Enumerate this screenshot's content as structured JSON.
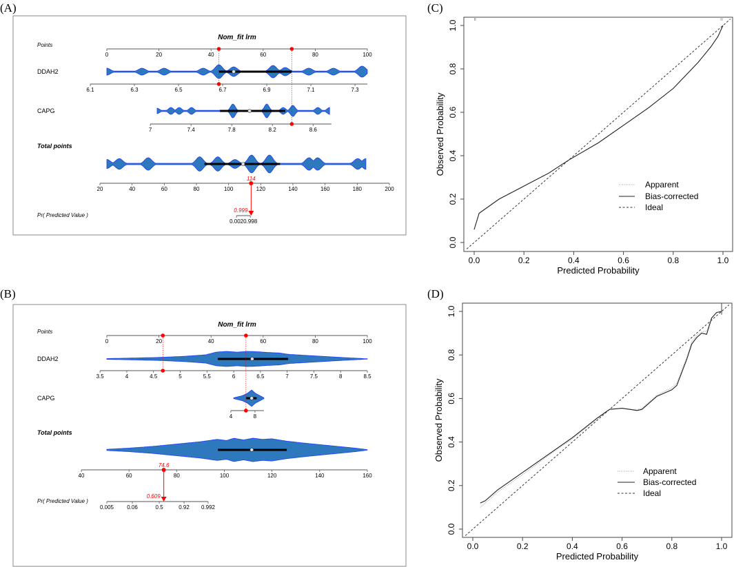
{
  "chart_data": [
    {
      "type": "nomogram",
      "panel_label": "(A)",
      "title": "Nom_fit lrm",
      "points_axis": {
        "label": "Points",
        "min": 0,
        "max": 100,
        "ticks": [
          "0",
          "20",
          "40",
          "60",
          "80",
          "100"
        ]
      },
      "variables": [
        {
          "name": "DDAH2",
          "value_range": [
            6.1,
            7.356
          ],
          "points_range": [
            -6.35,
            100
          ],
          "ticks": [
            "6.1",
            "6.3",
            "6.5",
            "6.7",
            "6.9",
            "7.1",
            "7.3"
          ],
          "selected_value": 6.69,
          "selected_points": 43,
          "violin": {
            "span": [
              0,
              100
            ],
            "bumps": [
              [
                0,
                0.5
              ],
              [
                13.5,
                0.5
              ],
              [
                22,
                0.5
              ],
              [
                37,
                0.5
              ],
              [
                43,
                1.0
              ],
              [
                48.7,
                0.7
              ],
              [
                63.8,
                0.9
              ],
              [
                68.5,
                0.6
              ],
              [
                77.5,
                0.5
              ],
              [
                87,
                0.5
              ],
              [
                98,
                0.8
              ]
            ],
            "iqr": [
              43,
              71
            ],
            "median": 48.7
          }
        },
        {
          "name": "CAPG",
          "value_range": [
            7,
            8.78
          ],
          "points_range": [
            16.7,
            86.2
          ],
          "ticks": [
            "7",
            "7.4",
            "7.8",
            "8.2",
            "8.6"
          ],
          "selected_value": 8.39,
          "selected_points": 71,
          "violin": {
            "span": [
              19.3,
              85.5
            ],
            "bumps": [
              [
                19.3,
                0.4
              ],
              [
                24.6,
                0.5
              ],
              [
                27.8,
                0.5
              ],
              [
                32.5,
                0.5
              ],
              [
                48.4,
                1
              ],
              [
                61.4,
                1
              ],
              [
                67.7,
                0.5
              ],
              [
                71.4,
                0.8
              ],
              [
                81,
                0.5
              ],
              [
                85.5,
                0.5
              ]
            ],
            "iqr": [
              43.4,
              68.5
            ],
            "median": 54.8
          }
        }
      ],
      "total_points": {
        "label": "Total points",
        "min": 20,
        "max": 200,
        "ticks": [
          "20",
          "40",
          "60",
          "80",
          "100",
          "120",
          "140",
          "160",
          "180",
          "200"
        ],
        "selected": "114",
        "selected_value": 114,
        "violin": {
          "span": [
            24.3,
            185.4
          ],
          "bumps": [
            [
              24.3,
              0.5
            ],
            [
              32,
              0.6
            ],
            [
              50,
              0.7
            ],
            [
              82,
              0.8
            ],
            [
              93.3,
              0.8
            ],
            [
              104,
              0.5
            ],
            [
              114.3,
              1
            ],
            [
              125.4,
              1
            ],
            [
              150,
              0.7
            ],
            [
              155.4,
              0.7
            ],
            [
              180.3,
              0.6
            ],
            [
              185.4,
              0.6
            ]
          ],
          "iqr": [
            85,
            132
          ],
          "median": 109
        }
      },
      "predicted": {
        "label": "Pr( Predicted Value )",
        "ticks": [
          {
            "label": "0.002",
            "total": 104.9
          },
          {
            "label": "0.998",
            "total": 113.5
          }
        ],
        "selected": "0.999"
      }
    },
    {
      "type": "nomogram",
      "panel_label": "(B)",
      "title": "Nom_fit lrm",
      "points_axis": {
        "label": "Points",
        "min": 0,
        "max": 100,
        "ticks": [
          "0",
          "20",
          "40",
          "60",
          "80",
          "100"
        ]
      },
      "variables": [
        {
          "name": "DDAH2",
          "value_range": [
            3.5,
            8.5
          ],
          "points_range": [
            -2.6,
            100
          ],
          "ticks": [
            "3.5",
            "4",
            "4.5",
            "5",
            "5.5",
            "6",
            "6.5",
            "7",
            "7.5",
            "8",
            "8.5"
          ],
          "selected_value": 4.67,
          "selected_points": 21.5,
          "violin": {
            "span": [
              0,
              100
            ],
            "profile": [
              [
                0,
                0.05
              ],
              [
                10,
                0.12
              ],
              [
                20,
                0.2
              ],
              [
                30,
                0.35
              ],
              [
                38,
                0.55
              ],
              [
                42,
                0.9
              ],
              [
                46,
                1
              ],
              [
                50,
                0.9
              ],
              [
                54,
                1
              ],
              [
                58,
                0.95
              ],
              [
                62,
                0.85
              ],
              [
                66,
                0.8
              ],
              [
                70,
                0.6
              ],
              [
                80,
                0.4
              ],
              [
                90,
                0.2
              ],
              [
                100,
                0.02
              ]
            ],
            "iqr": [
              42.6,
              69.6
            ],
            "median": 55.8
          }
        },
        {
          "name": "CAPG",
          "value_range": [
            4,
            9.49
          ],
          "points_range": [
            47.6,
            60.3
          ],
          "ticks": [
            "4",
            "8"
          ],
          "selected_value": 6.5,
          "selected_points": 53.4,
          "violin": {
            "span": [
              48.7,
              60.3
            ],
            "profile": [
              [
                48.7,
                0.05
              ],
              [
                52,
                0.3
              ],
              [
                54,
                0.6
              ],
              [
                55.6,
                1
              ],
              [
                57,
                0.6
              ],
              [
                60.3,
                0.05
              ]
            ],
            "iqr": [
              53.5,
              57.5
            ],
            "median": 55.6
          }
        }
      ],
      "total_points": {
        "label": "Total points",
        "min": 40,
        "max": 160,
        "ticks": [
          "40",
          "60",
          "80",
          "100",
          "120",
          "140",
          "160"
        ],
        "selected": "74.6",
        "selected_value": 74.6,
        "violin": {
          "span": [
            50.7,
            160
          ],
          "profile": [
            [
              50.7,
              0.05
            ],
            [
              60,
              0.15
            ],
            [
              70,
              0.3
            ],
            [
              80,
              0.5
            ],
            [
              90,
              0.7
            ],
            [
              97,
              0.9
            ],
            [
              101,
              0.8
            ],
            [
              104,
              1
            ],
            [
              108,
              0.85
            ],
            [
              112,
              1
            ],
            [
              116,
              0.9
            ],
            [
              120,
              0.95
            ],
            [
              126,
              0.75
            ],
            [
              135,
              0.55
            ],
            [
              145,
              0.35
            ],
            [
              155,
              0.15
            ],
            [
              160,
              0.02
            ]
          ],
          "iqr": [
            97.3,
            126.2
          ],
          "median": 111.5
        }
      },
      "predicted": {
        "label": "Pr( Predicted Value )",
        "ticks": [
          {
            "label": "0.005",
            "total": 50.7
          },
          {
            "label": "0.06",
            "total": 61.4
          },
          {
            "label": "0.5",
            "total": 72.7
          },
          {
            "label": "0.92",
            "total": 83.1
          },
          {
            "label": "0.992",
            "total": 93.2
          }
        ],
        "selected": "0.609"
      }
    },
    {
      "type": "line",
      "panel_label": "(C)",
      "xlabel": "Predicted Probability",
      "ylabel": "Observed Probability",
      "xlim": [
        -0.03,
        1.03
      ],
      "ylim": [
        -0.03,
        1.03
      ],
      "xticks": [
        "0.0",
        "0.2",
        "0.4",
        "0.6",
        "0.8",
        "1.0"
      ],
      "yticks": [
        "0.0",
        "0.2",
        "0.4",
        "0.6",
        "0.8",
        "1.0"
      ],
      "legend_position": "bottom-right",
      "series": [
        {
          "name": "Apparent",
          "style": "dotted",
          "x": [
            0,
            0.02,
            0.1,
            0.2,
            0.3,
            0.38,
            0.5,
            0.6,
            0.7,
            0.8,
            0.9,
            0.95,
            0.98,
            1.0
          ],
          "y": [
            0.06,
            0.135,
            0.2,
            0.26,
            0.32,
            0.38,
            0.46,
            0.54,
            0.62,
            0.71,
            0.83,
            0.9,
            0.95,
            1.0
          ]
        },
        {
          "name": "Bias-corrected",
          "style": "solid",
          "x": [
            0,
            0.02,
            0.1,
            0.2,
            0.3,
            0.38,
            0.5,
            0.6,
            0.7,
            0.8,
            0.9,
            0.95,
            0.98,
            1.0
          ],
          "y": [
            0.06,
            0.135,
            0.2,
            0.26,
            0.32,
            0.38,
            0.46,
            0.54,
            0.62,
            0.71,
            0.83,
            0.9,
            0.95,
            1.0
          ]
        },
        {
          "name": "Ideal",
          "style": "dashed",
          "x": [
            -0.03,
            1.03
          ],
          "y": [
            -0.03,
            1.03
          ]
        }
      ]
    },
    {
      "type": "line",
      "panel_label": "(D)",
      "xlabel": "Predicted Probability",
      "ylabel": "Observed Probability",
      "xlim": [
        -0.03,
        1.03
      ],
      "ylim": [
        -0.03,
        1.03
      ],
      "xticks": [
        "0.0",
        "0.2",
        "0.4",
        "0.6",
        "0.8",
        "1.0"
      ],
      "yticks": [
        "0.0",
        "0.2",
        "0.4",
        "0.6",
        "0.8",
        "1.0"
      ],
      "legend_position": "bottom-right",
      "series": [
        {
          "name": "Apparent",
          "style": "dotted",
          "x": [
            0.03,
            0.1,
            0.2,
            0.3,
            0.4,
            0.5,
            0.55,
            0.6,
            0.66,
            0.68,
            0.74,
            0.8,
            0.82,
            0.86,
            0.88,
            0.9,
            0.92,
            0.94,
            0.96,
            0.98,
            1.0
          ],
          "y": [
            0.1,
            0.17,
            0.25,
            0.335,
            0.415,
            0.505,
            0.55,
            0.555,
            0.548,
            0.555,
            0.615,
            0.65,
            0.67,
            0.79,
            0.86,
            0.89,
            0.905,
            0.91,
            0.97,
            0.995,
            1.0
          ]
        },
        {
          "name": "Bias-corrected",
          "style": "solid",
          "x": [
            0.03,
            0.05,
            0.1,
            0.2,
            0.3,
            0.4,
            0.5,
            0.55,
            0.6,
            0.66,
            0.68,
            0.74,
            0.8,
            0.82,
            0.86,
            0.88,
            0.9,
            0.92,
            0.94,
            0.96,
            0.98,
            1.0
          ],
          "y": [
            0.12,
            0.13,
            0.18,
            0.26,
            0.34,
            0.42,
            0.51,
            0.55,
            0.555,
            0.545,
            0.55,
            0.61,
            0.64,
            0.66,
            0.78,
            0.85,
            0.88,
            0.9,
            0.895,
            0.97,
            0.995,
            1.0
          ]
        },
        {
          "name": "Ideal",
          "style": "dashed",
          "x": [
            -0.03,
            1.03
          ],
          "y": [
            -0.03,
            1.03
          ]
        }
      ]
    }
  ],
  "colors": {
    "violin_fill": "#2e78bd",
    "violin_stroke": "#1f3dff",
    "marker": "#ff0000",
    "axis": "#555555"
  }
}
